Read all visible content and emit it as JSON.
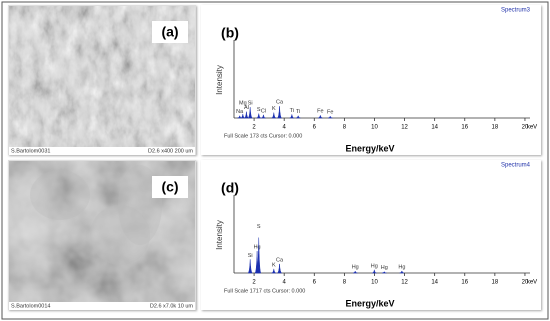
{
  "panels": [
    {
      "image": {
        "label": "(a)",
        "sample": "S.Bartolom0031",
        "settings": "D2.6    x400     200 um"
      },
      "spectrum": {
        "label": "(b)",
        "title": "Spectrum3",
        "y_label": "Intensity",
        "x_label": "Energy/keV",
        "x_unit": "keV",
        "footer": "Full Scale 173 cts Cursor: 0.000",
        "xlim": [
          0,
          21
        ],
        "ylim": [
          0,
          173
        ],
        "xticks": [
          2,
          4,
          6,
          8,
          10,
          12,
          14,
          16,
          18,
          20
        ],
        "peaks": [
          {
            "label": "Na",
            "energy": 1.04,
            "counts": 5
          },
          {
            "label": "Mg",
            "energy": 1.25,
            "counts": 9
          },
          {
            "label": "Al",
            "energy": 1.49,
            "counts": 14
          },
          {
            "label": "Si",
            "energy": 1.74,
            "counts": 24
          },
          {
            "label": "S",
            "energy": 2.31,
            "counts": 10
          },
          {
            "label": "Cl",
            "energy": 2.62,
            "counts": 7
          },
          {
            "label": "K",
            "energy": 3.31,
            "counts": 12
          },
          {
            "label": "Ca",
            "energy": 3.69,
            "counts": 26
          },
          {
            "label": "Ti",
            "energy": 4.51,
            "counts": 8
          },
          {
            "label": "Ti",
            "energy": 4.93,
            "counts": 5
          },
          {
            "label": "Fe",
            "energy": 6.4,
            "counts": 6
          },
          {
            "label": "Fe",
            "energy": 7.06,
            "counts": 4
          }
        ]
      }
    },
    {
      "image": {
        "label": "(c)",
        "sample": "S.Bartolom0014",
        "settings": "D2.6    x7.0k     10 um"
      },
      "spectrum": {
        "label": "(d)",
        "title": "Spectrum4",
        "y_label": "Intensity",
        "x_label": "Energy/keV",
        "x_unit": "keV",
        "footer": "Full Scale 1717 cts Cursor: 0.000",
        "xlim": [
          0,
          21
        ],
        "ylim": [
          0,
          1717
        ],
        "xticks": [
          2,
          4,
          6,
          8,
          10,
          12,
          14,
          16,
          18,
          20
        ],
        "peaks": [
          {
            "label": "Si",
            "energy": 1.74,
            "counts": 300
          },
          {
            "label": "Hg",
            "energy": 2.2,
            "counts": 480
          },
          {
            "label": "S",
            "energy": 2.31,
            "counts": 780
          },
          {
            "label": "K",
            "energy": 3.31,
            "counts": 90
          },
          {
            "label": "Ca",
            "energy": 3.69,
            "counts": 200
          },
          {
            "label": "Hg",
            "energy": 8.72,
            "counts": 40
          },
          {
            "label": "Hg",
            "energy": 9.99,
            "counts": 70
          },
          {
            "label": "Hg",
            "energy": 10.65,
            "counts": 30
          },
          {
            "label": "Hg",
            "energy": 11.82,
            "counts": 45
          }
        ]
      }
    }
  ]
}
